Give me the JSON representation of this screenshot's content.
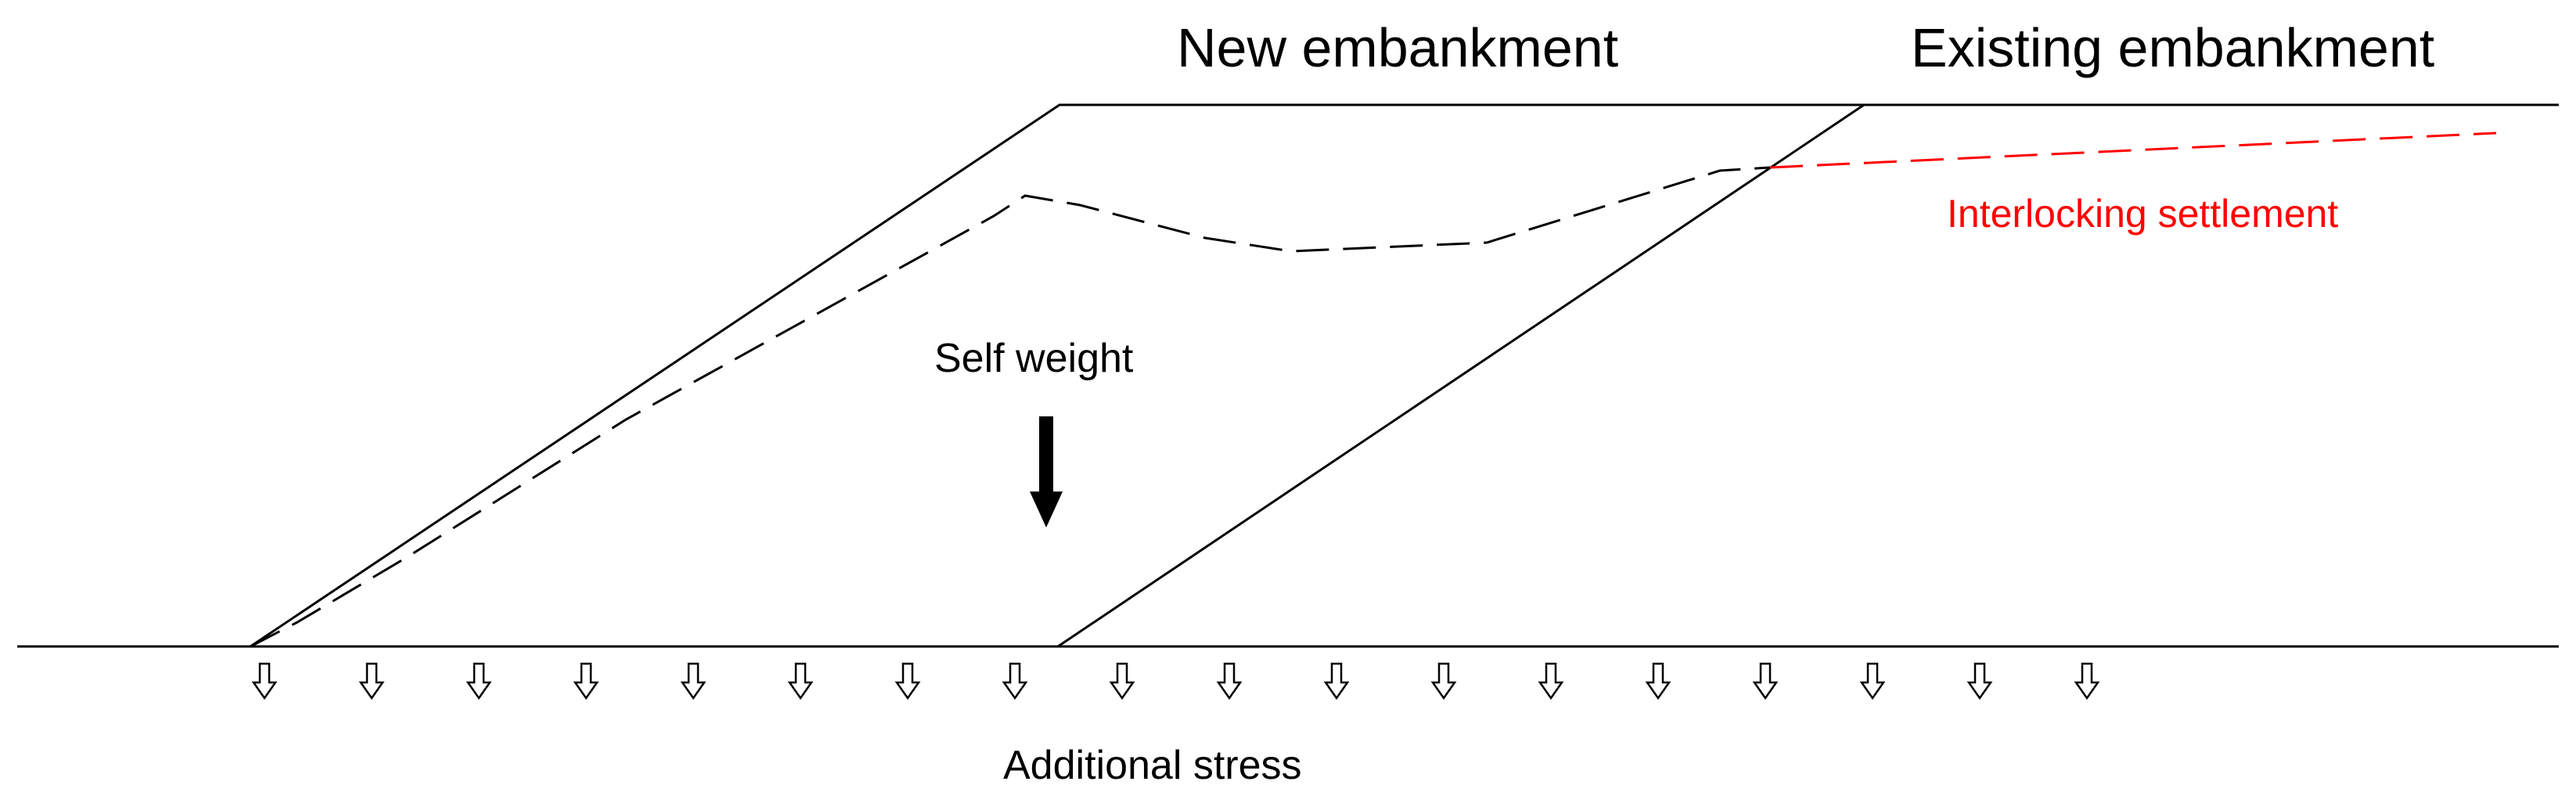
{
  "labels": {
    "new_embankment": "New embankment",
    "existing_embankment": "Existing embankment",
    "interlocking_settlement": "Interlocking settlement",
    "self_weight": "Self weight",
    "additional_stress": "Additional stress"
  },
  "colors": {
    "lines": "#000000",
    "settlement_line": "#ff0000",
    "settlement_text": "#ff0000",
    "background": "#ffffff"
  },
  "icons": {
    "self_weight_arrow": "arrow-down-solid",
    "stress_arrows": "arrow-down-hollow"
  }
}
